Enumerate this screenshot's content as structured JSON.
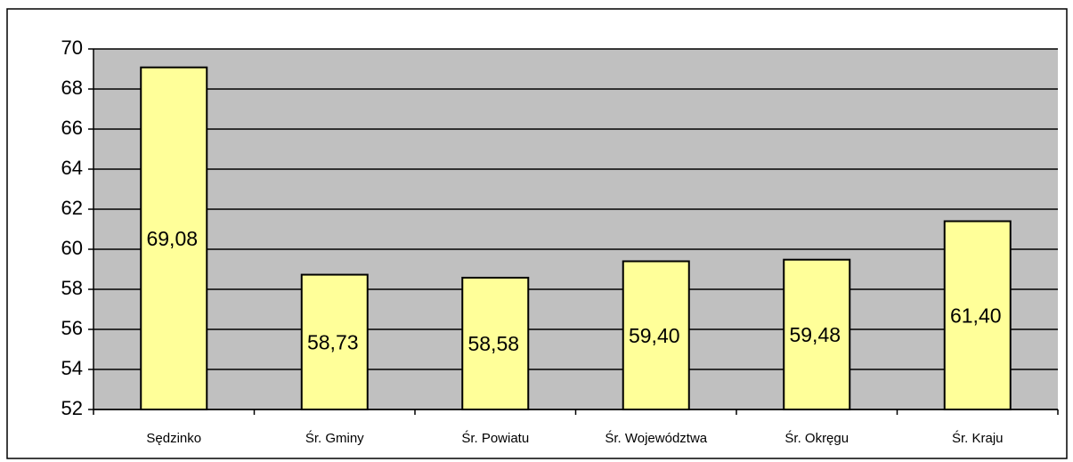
{
  "chart_data": {
    "type": "bar",
    "categories": [
      "Sędzinko",
      "Śr. Gminy",
      "Śr. Powiatu",
      "Śr. Województwa",
      "Śr. Okręgu",
      "Śr. Kraju"
    ],
    "values": [
      69.08,
      58.73,
      58.58,
      59.4,
      59.48,
      61.4
    ],
    "value_labels": [
      "69,08",
      "58,73",
      "58,58",
      "59,40",
      "59,48",
      "61,40"
    ],
    "color": "#ffff99",
    "ylim": [
      52,
      70
    ],
    "yticks": [
      52,
      54,
      56,
      58,
      60,
      62,
      64,
      66,
      68,
      70
    ],
    "grid": true
  }
}
